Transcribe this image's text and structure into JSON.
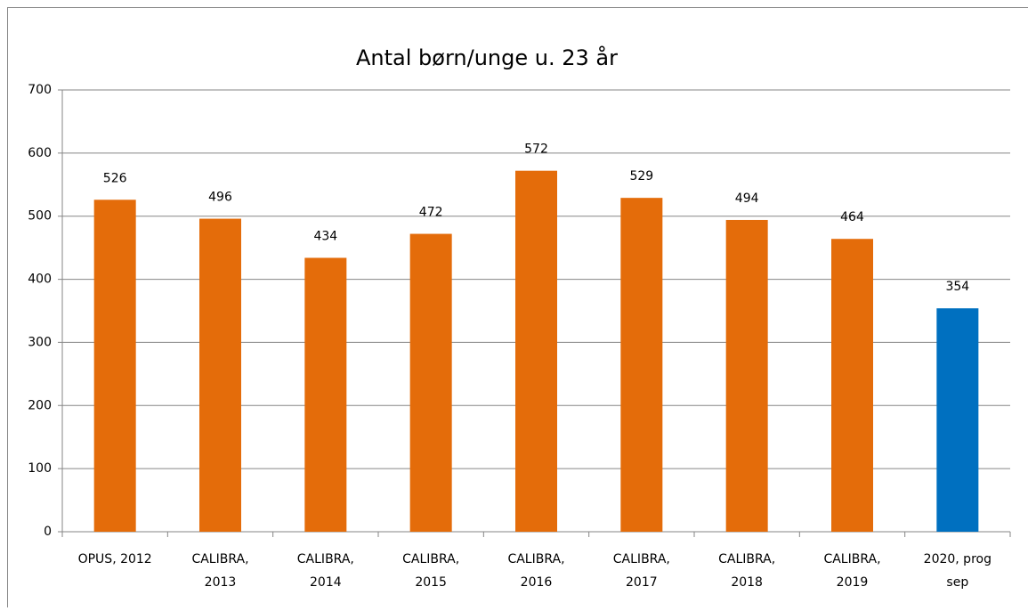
{
  "chart_data": {
    "type": "bar",
    "title": "Antal børn/unge u. 23 år",
    "categories": [
      "OPUS, 2012",
      "CALIBRA, 2013",
      "CALIBRA, 2014",
      "CALIBRA, 2015",
      "CALIBRA, 2016",
      "CALIBRA, 2017",
      "CALIBRA, 2018",
      "CALIBRA, 2019",
      "2020, prog sep"
    ],
    "values": [
      526,
      496,
      434,
      472,
      572,
      529,
      494,
      464,
      354
    ],
    "colors": [
      "#e46c0a",
      "#e46c0a",
      "#e46c0a",
      "#e46c0a",
      "#e46c0a",
      "#e46c0a",
      "#e46c0a",
      "#e46c0a",
      "#0070c0"
    ],
    "ylim": [
      0,
      700
    ],
    "yticks": [
      0,
      100,
      200,
      300,
      400,
      500,
      600,
      700
    ],
    "grid": true
  }
}
